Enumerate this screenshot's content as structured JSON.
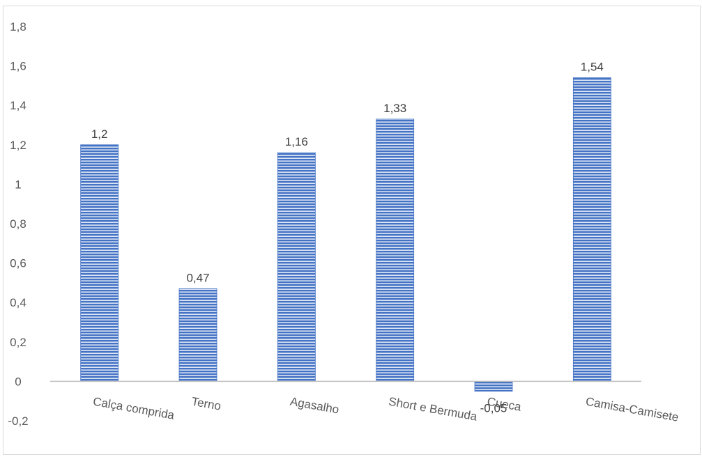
{
  "chart_data": {
    "type": "bar",
    "categories": [
      "Calça comprida",
      "Terno",
      "Agasalho",
      "Short e Bermuda",
      "Cueca",
      "Camisa-Camisete"
    ],
    "values": [
      1.2,
      0.47,
      1.16,
      1.33,
      -0.05,
      1.54
    ],
    "data_labels": [
      "1,2",
      "0,47",
      "1,16",
      "1,33",
      "-0,05",
      "1,54"
    ],
    "y_ticks": [
      "1,8",
      "1,6",
      "1,4",
      "1,2",
      "1",
      "0,8",
      "0,6",
      "0,4",
      "0,2",
      "0",
      "-0,2"
    ],
    "y_tick_values": [
      1.8,
      1.6,
      1.4,
      1.2,
      1.0,
      0.8,
      0.6,
      0.4,
      0.2,
      0,
      -0.2
    ],
    "ylim": [
      -0.2,
      1.8
    ],
    "grid": false,
    "legend": "none",
    "bar_color": "#4472c4",
    "bar_stripe_color": "#ffffff"
  }
}
